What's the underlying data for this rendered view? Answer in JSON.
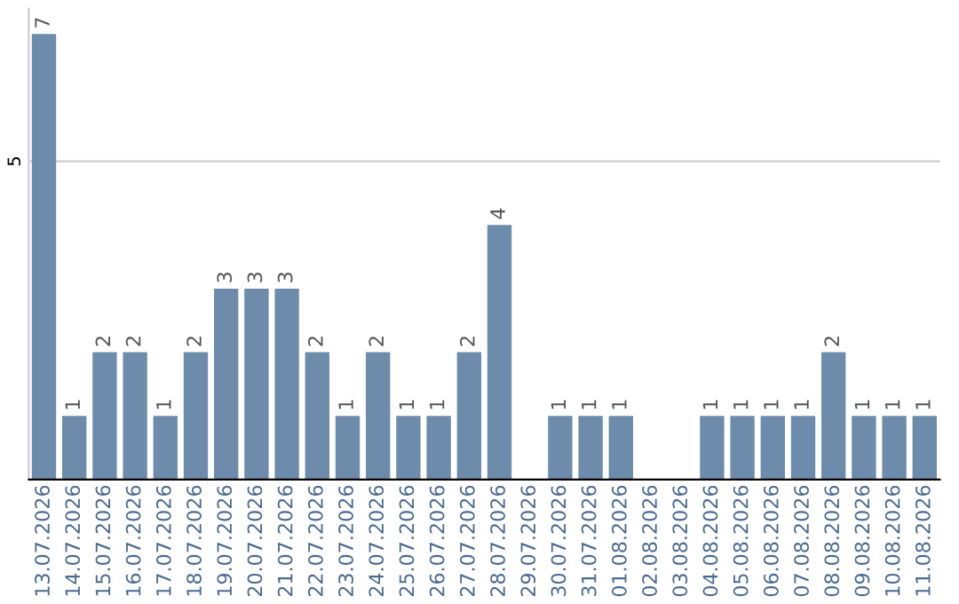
{
  "chart_data": {
    "type": "bar",
    "categories": [
      "13.07.2026",
      "14.07.2026",
      "15.07.2026",
      "16.07.2026",
      "17.07.2026",
      "18.07.2026",
      "19.07.2026",
      "20.07.2026",
      "21.07.2026",
      "22.07.2026",
      "23.07.2026",
      "24.07.2026",
      "25.07.2026",
      "26.07.2026",
      "27.07.2026",
      "28.07.2026",
      "29.07.2026",
      "30.07.2026",
      "31.07.2026",
      "01.08.2026",
      "02.08.2026",
      "03.08.2026",
      "04.08.2026",
      "05.08.2026",
      "06.08.2026",
      "07.08.2026",
      "08.08.2026",
      "09.08.2026",
      "10.08.2026",
      "11.08.2026"
    ],
    "values": [
      7,
      1,
      2,
      2,
      1,
      2,
      3,
      3,
      3,
      2,
      1,
      2,
      1,
      1,
      2,
      4,
      0,
      1,
      1,
      1,
      0,
      0,
      1,
      1,
      1,
      1,
      2,
      1,
      1,
      1
    ],
    "value_labels": [
      "7",
      "1",
      "2",
      "2",
      "1",
      "2",
      "3",
      "3",
      "3",
      "2",
      "1",
      "2",
      "1",
      "1",
      "2",
      "4",
      null,
      "1",
      "1",
      "1",
      null,
      null,
      "1",
      "1",
      "1",
      "1",
      "2",
      "1",
      "1",
      "1"
    ],
    "color": "#6d8cab",
    "ylim": [
      0,
      7.4
    ],
    "yticks": [
      5
    ],
    "grid": "y"
  }
}
